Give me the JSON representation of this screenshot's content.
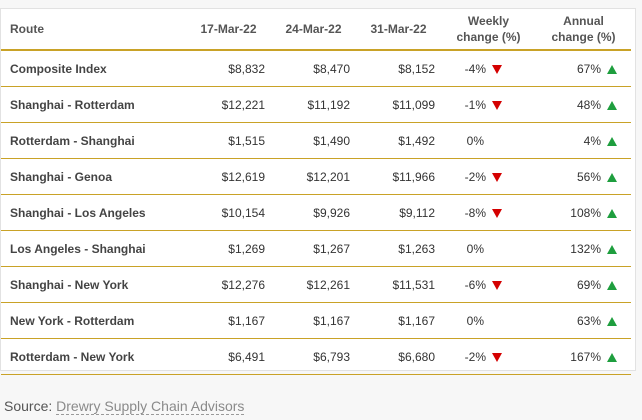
{
  "headers": {
    "route": "Route",
    "d1": "17-Mar-22",
    "d2": "24-Mar-22",
    "d3": "31-Mar-22",
    "weekly_line1": "Weekly",
    "weekly_line2": "change (%)",
    "annual_line1": "Annual",
    "annual_line2": "change (%)"
  },
  "rows": [
    {
      "route": "Composite Index",
      "d1": "$8,832",
      "d2": "$8,470",
      "d3": "$8,152",
      "weekly": "-4%",
      "weekly_dir": "down",
      "annual": "67%",
      "annual_dir": "up"
    },
    {
      "route": "Shanghai - Rotterdam",
      "d1": "$12,221",
      "d2": "$11,192",
      "d3": "$11,099",
      "weekly": "-1%",
      "weekly_dir": "down",
      "annual": "48%",
      "annual_dir": "up"
    },
    {
      "route": "Rotterdam - Shanghai",
      "d1": "$1,515",
      "d2": "$1,490",
      "d3": "$1,492",
      "weekly": "0%",
      "weekly_dir": "none",
      "annual": "4%",
      "annual_dir": "up"
    },
    {
      "route": "Shanghai - Genoa",
      "d1": "$12,619",
      "d2": "$12,201",
      "d3": "$11,966",
      "weekly": "-2%",
      "weekly_dir": "down",
      "annual": "56%",
      "annual_dir": "up"
    },
    {
      "route": "Shanghai - Los Angeles",
      "d1": "$10,154",
      "d2": "$9,926",
      "d3": "$9,112",
      "weekly": "-8%",
      "weekly_dir": "down",
      "annual": "108%",
      "annual_dir": "up"
    },
    {
      "route": "Los Angeles - Shanghai",
      "d1": "$1,269",
      "d2": "$1,267",
      "d3": "$1,263",
      "weekly": "0%",
      "weekly_dir": "none",
      "annual": "132%",
      "annual_dir": "up"
    },
    {
      "route": "Shanghai - New York",
      "d1": "$12,276",
      "d2": "$12,261",
      "d3": "$11,531",
      "weekly": "-6%",
      "weekly_dir": "down",
      "annual": "69%",
      "annual_dir": "up"
    },
    {
      "route": "New York - Rotterdam",
      "d1": "$1,167",
      "d2": "$1,167",
      "d3": "$1,167",
      "weekly": "0%",
      "weekly_dir": "none",
      "annual": "63%",
      "annual_dir": "up"
    },
    {
      "route": "Rotterdam - New York",
      "d1": "$6,491",
      "d2": "$6,793",
      "d3": "$6,680",
      "weekly": "-2%",
      "weekly_dir": "down",
      "annual": "167%",
      "annual_dir": "up"
    }
  ],
  "icons": {
    "down": "down-triangle-icon",
    "up": "up-triangle-icon"
  },
  "colors": {
    "down": "#d40000",
    "up": "#1e9e3e",
    "rule": "#c9a227"
  },
  "source": {
    "prefix": "Source:",
    "link": "Drewry Supply Chain Advisors"
  }
}
